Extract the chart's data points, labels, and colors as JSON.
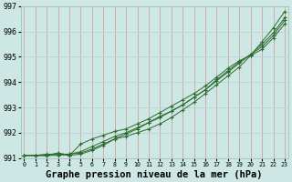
{
  "title": "Graphe pression niveau de la mer (hPa)",
  "xlabel_hours": [
    0,
    1,
    2,
    3,
    4,
    5,
    6,
    7,
    8,
    9,
    10,
    11,
    12,
    13,
    14,
    15,
    16,
    17,
    18,
    19,
    20,
    21,
    22,
    23
  ],
  "series": [
    [
      991.1,
      991.1,
      991.1,
      991.1,
      991.15,
      991.2,
      991.35,
      991.55,
      991.75,
      991.85,
      992.0,
      992.15,
      992.35,
      992.6,
      992.9,
      993.2,
      993.55,
      993.9,
      994.25,
      994.6,
      995.05,
      995.6,
      996.15,
      996.8
    ],
    [
      991.1,
      991.1,
      991.1,
      991.15,
      991.15,
      991.25,
      991.45,
      991.65,
      991.85,
      992.0,
      992.2,
      992.4,
      992.6,
      992.85,
      993.1,
      993.4,
      993.7,
      994.05,
      994.4,
      994.75,
      995.1,
      995.5,
      995.95,
      996.55
    ],
    [
      991.1,
      991.1,
      991.1,
      991.2,
      991.1,
      991.55,
      991.75,
      991.9,
      992.05,
      992.15,
      992.35,
      992.55,
      992.8,
      993.05,
      993.3,
      993.55,
      993.85,
      994.2,
      994.55,
      994.85,
      995.05,
      995.3,
      995.75,
      996.3
    ],
    [
      991.1,
      991.1,
      991.15,
      991.15,
      991.1,
      991.15,
      991.3,
      991.5,
      991.75,
      991.95,
      992.15,
      992.4,
      992.65,
      992.85,
      993.1,
      993.4,
      993.7,
      994.1,
      994.45,
      994.8,
      995.1,
      995.4,
      995.85,
      996.45
    ]
  ],
  "line_color": "#2d6a2d",
  "marker": "+",
  "bg_color": "#cde8e4",
  "grid_major_color": "#b8d4d0",
  "grid_minor_color": "#d4a0a0",
  "ylim": [
    991.0,
    997.0
  ],
  "yticks": [
    991,
    992,
    993,
    994,
    995,
    996,
    997
  ],
  "xticks": [
    0,
    1,
    2,
    3,
    4,
    5,
    6,
    7,
    8,
    9,
    10,
    11,
    12,
    13,
    14,
    15,
    16,
    17,
    18,
    19,
    20,
    21,
    22,
    23
  ],
  "title_fontsize": 7.5,
  "tick_fontsize": 6.0
}
